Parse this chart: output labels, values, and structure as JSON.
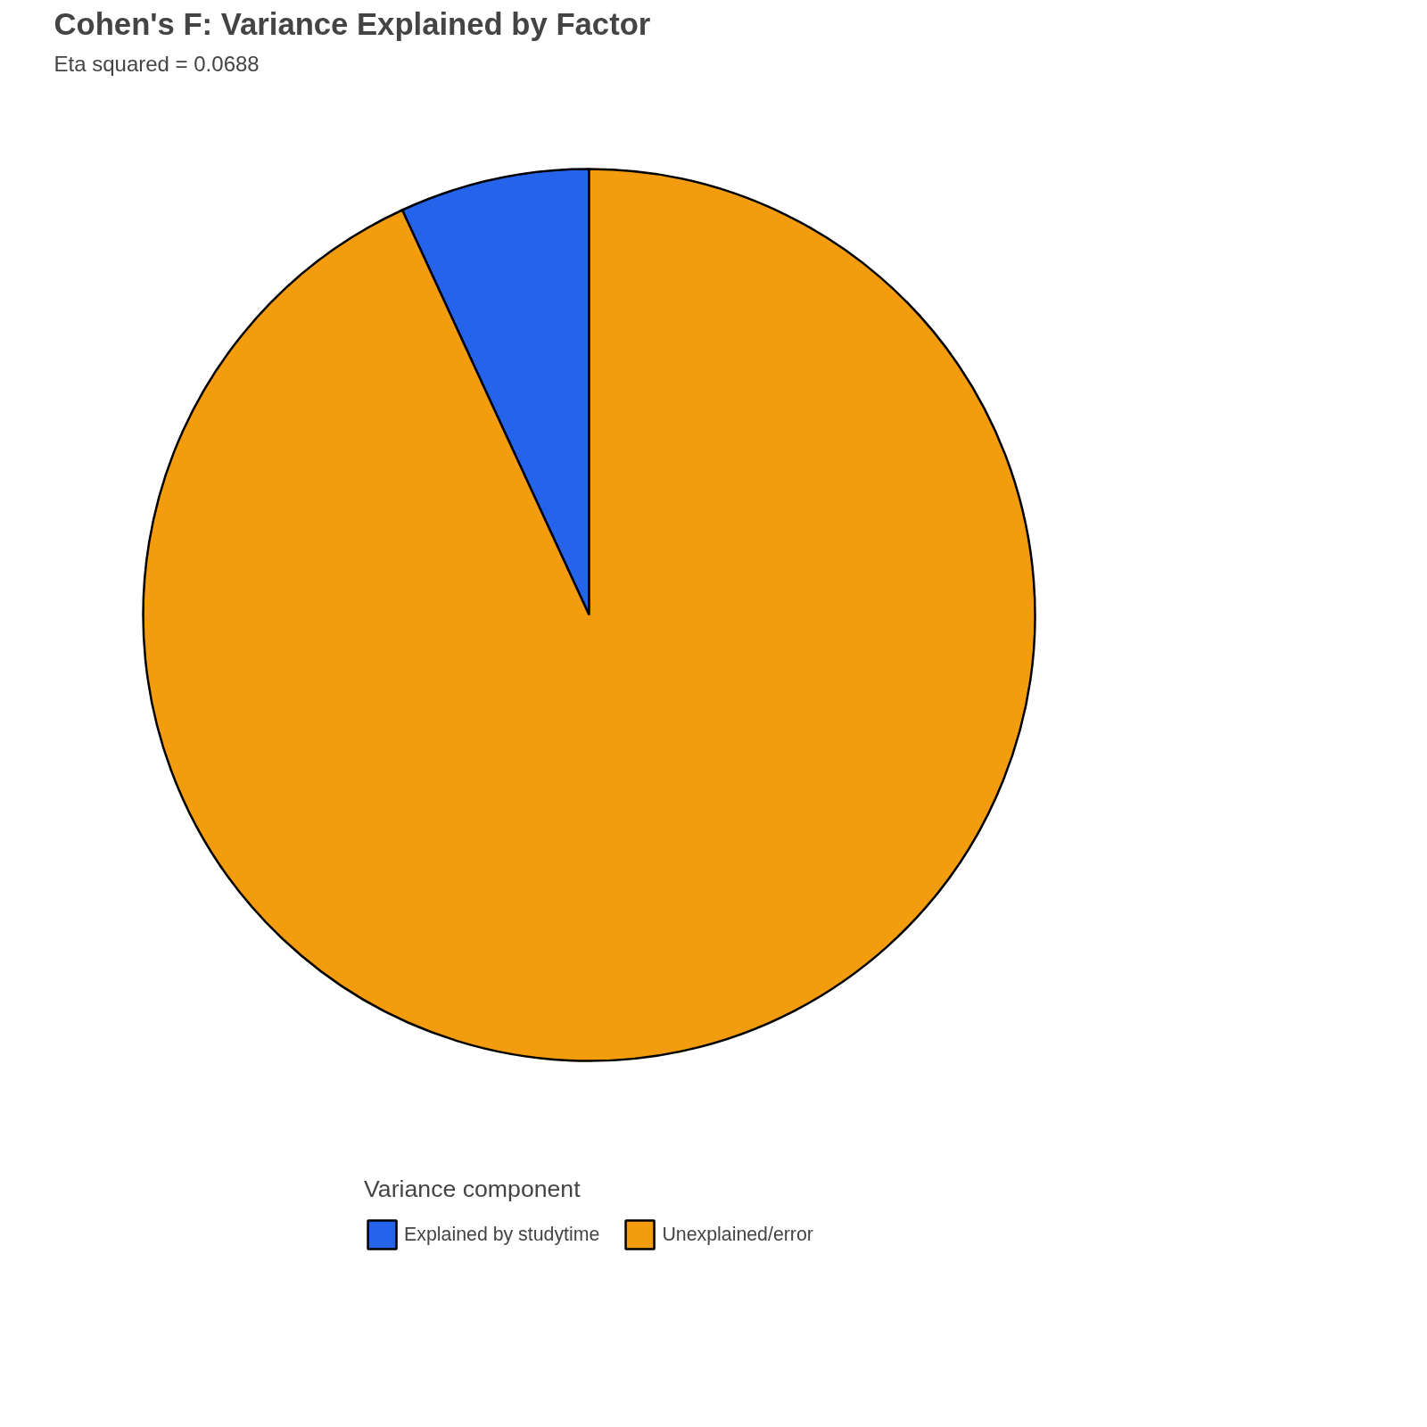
{
  "chart_data": {
    "type": "pie",
    "title": "Cohen's F: Variance Explained by Factor",
    "subtitle": "Eta squared = 0.0688",
    "legend_title": "Variance component",
    "legend": "bottom",
    "categories": [
      "Explained by studytime",
      "Unexplained/error"
    ],
    "values": [
      6.88,
      93.12
    ],
    "colors": [
      "#2563eb",
      "#f39c0e"
    ]
  }
}
